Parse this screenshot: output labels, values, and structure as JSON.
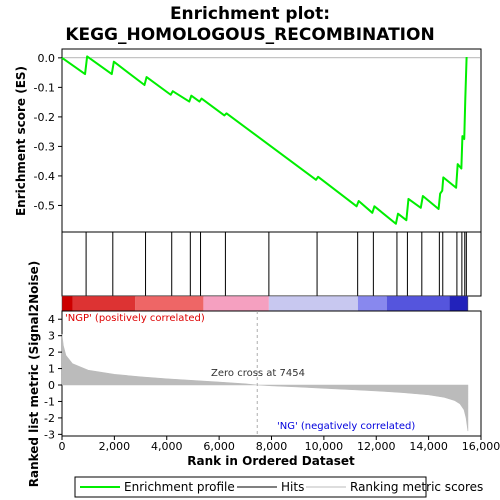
{
  "chart_data": {
    "type": "line",
    "title_line1": "Enrichment plot:",
    "title_line2": "KEGG_HOMOLOGOUS_RECOMBINATION",
    "x_axis": {
      "label": "Rank in Ordered Dataset",
      "range": [
        0,
        16000
      ],
      "ticks": [
        0,
        2000,
        4000,
        6000,
        8000,
        10000,
        12000,
        14000,
        16000
      ],
      "tick_labels": [
        "0",
        "2,000",
        "4,000",
        "6,000",
        "8,000",
        "10,000",
        "12,000",
        "14,000",
        "16,000"
      ]
    },
    "es_panel": {
      "ylabel": "Enrichment score (ES)",
      "ylim": [
        -0.59,
        0.03
      ],
      "ticks": [
        0.0,
        -0.1,
        -0.2,
        -0.3,
        -0.4,
        -0.5
      ],
      "tick_labels": [
        "0.0",
        "-0.1",
        "-0.2",
        "-0.3",
        "-0.4",
        "-0.5"
      ],
      "series_name": "Enrichment profile",
      "color": "#00ee00",
      "points": [
        [
          0,
          0.0
        ],
        [
          880,
          -0.055
        ],
        [
          960,
          0.005
        ],
        [
          1900,
          -0.055
        ],
        [
          1980,
          -0.013
        ],
        [
          3150,
          -0.092
        ],
        [
          3230,
          -0.065
        ],
        [
          4150,
          -0.125
        ],
        [
          4230,
          -0.113
        ],
        [
          4860,
          -0.148
        ],
        [
          4940,
          -0.128
        ],
        [
          5250,
          -0.148
        ],
        [
          5330,
          -0.138
        ],
        [
          6200,
          -0.195
        ],
        [
          6280,
          -0.188
        ],
        [
          9700,
          -0.413
        ],
        [
          9780,
          -0.403
        ],
        [
          11250,
          -0.503
        ],
        [
          11330,
          -0.485
        ],
        [
          11850,
          -0.525
        ],
        [
          11930,
          -0.503
        ],
        [
          12750,
          -0.562
        ],
        [
          12830,
          -0.528
        ],
        [
          13150,
          -0.55
        ],
        [
          13230,
          -0.478
        ],
        [
          13700,
          -0.508
        ],
        [
          13780,
          -0.468
        ],
        [
          14380,
          -0.512
        ],
        [
          14440,
          -0.46
        ],
        [
          14520,
          -0.45
        ],
        [
          14560,
          -0.405
        ],
        [
          15050,
          -0.44
        ],
        [
          15110,
          -0.36
        ],
        [
          15250,
          -0.375
        ],
        [
          15290,
          -0.265
        ],
        [
          15360,
          -0.275
        ],
        [
          15400,
          -0.14
        ],
        [
          15450,
          0.003
        ]
      ]
    },
    "hits": {
      "name": "Hits",
      "positions": [
        920,
        1940,
        3190,
        4190,
        4900,
        5290,
        6240,
        7900,
        9740,
        11290,
        11890,
        12790,
        13190,
        13740,
        14410,
        14540,
        15080,
        15270,
        15380,
        15440
      ]
    },
    "color_bar": {
      "colors": [
        "#cc0000",
        "#dd3333",
        "#ee6666",
        "#f5a0c0",
        "#c8c8f0",
        "#8888ee",
        "#5555dd",
        "#2222bb",
        "#0000aa"
      ],
      "boundaries": [
        0,
        400,
        2800,
        5400,
        7900,
        11300,
        12400,
        14800,
        15500
      ]
    },
    "metric_panel": {
      "ylabel": "Ranked list metric (Signal2Noise)",
      "ylim": [
        -3.1,
        4.5
      ],
      "ticks": [
        4,
        3,
        2,
        1,
        0,
        -1,
        -2,
        -3
      ],
      "tick_labels": [
        "4",
        "3",
        "2",
        "1",
        "0",
        "-1",
        "-2",
        "-3"
      ],
      "series_name": "Ranking metric scores",
      "color": "#bbbbbb",
      "points": [
        [
          0,
          3.1
        ],
        [
          50,
          2.4
        ],
        [
          150,
          1.8
        ],
        [
          400,
          1.3
        ],
        [
          1000,
          0.9
        ],
        [
          2000,
          0.65
        ],
        [
          3000,
          0.5
        ],
        [
          4000,
          0.38
        ],
        [
          5000,
          0.28
        ],
        [
          6000,
          0.18
        ],
        [
          7000,
          0.07
        ],
        [
          7454,
          0.0
        ],
        [
          8000,
          -0.05
        ],
        [
          9000,
          -0.12
        ],
        [
          10000,
          -0.2
        ],
        [
          11000,
          -0.28
        ],
        [
          12000,
          -0.36
        ],
        [
          13000,
          -0.46
        ],
        [
          14000,
          -0.6
        ],
        [
          14600,
          -0.75
        ],
        [
          15000,
          -0.95
        ],
        [
          15200,
          -1.15
        ],
        [
          15350,
          -1.5
        ],
        [
          15430,
          -2.0
        ],
        [
          15500,
          -2.8
        ]
      ],
      "zero_cross_label": "Zero cross at 7454",
      "zero_cross_rank": 7454,
      "pos_label": "'NGP' (positively correlated)",
      "neg_label": "'NG' (negatively correlated)"
    },
    "legend": {
      "placement": "bottom",
      "entries": [
        {
          "label": "Enrichment profile",
          "color": "#00ee00",
          "style": "line"
        },
        {
          "label": "Hits",
          "color": "#000000",
          "style": "line"
        },
        {
          "label": "Ranking metric scores",
          "color": "#bbbbbb",
          "style": "line"
        }
      ]
    }
  }
}
